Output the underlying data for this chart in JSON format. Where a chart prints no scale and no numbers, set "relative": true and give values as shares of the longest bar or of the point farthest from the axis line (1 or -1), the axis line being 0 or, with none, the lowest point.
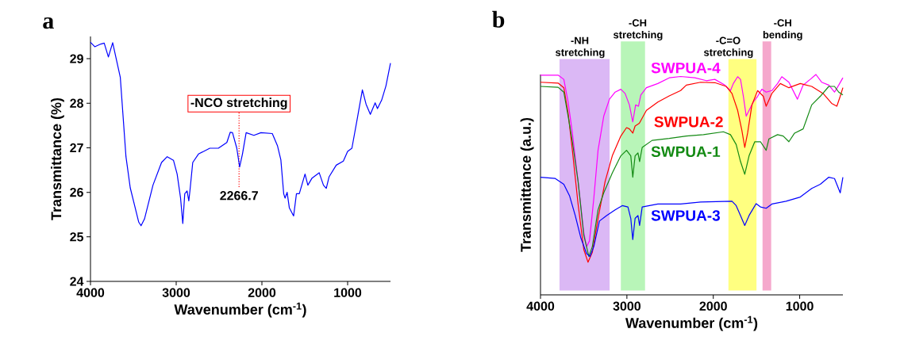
{
  "chart_data": [
    {
      "type": "line",
      "title": "a",
      "xlabel": "Wavenumber (cm$^{-1}$)",
      "ylabel": "Transmittance (%)",
      "xlim": [
        4000,
        500
      ],
      "ylim": [
        24,
        29.5
      ],
      "xticks": [
        4000,
        3000,
        2000,
        1000
      ],
      "yticks": [
        24,
        25,
        26,
        27,
        28,
        29
      ],
      "x": [
        4000,
        3950,
        3880,
        3840,
        3791,
        3741,
        3652,
        3586,
        3536,
        3437,
        3410,
        3370,
        3271,
        3171,
        3105,
        3032,
        2989,
        2949,
        2923,
        2900,
        2873,
        2853,
        2840,
        2807,
        2740,
        2608,
        2508,
        2409,
        2369,
        2343,
        2293,
        2260,
        2227,
        2184,
        2094,
        2011,
        1879,
        1819,
        1779,
        1746,
        1730,
        1706,
        1680,
        1630,
        1597,
        1564,
        1497,
        1464,
        1415,
        1332,
        1282,
        1249,
        1216,
        1133,
        1050,
        1000,
        950,
        884,
        828,
        785,
        735,
        679,
        652,
        603,
        553,
        500
      ],
      "series": [
        {
          "color": "#0000ff",
          "values": [
            29.37,
            29.27,
            29.33,
            29.35,
            29.04,
            29.36,
            28.58,
            26.8,
            26.1,
            25.33,
            25.25,
            25.4,
            26.16,
            26.67,
            26.8,
            26.72,
            26.41,
            25.87,
            25.3,
            25.97,
            26.03,
            25.81,
            26.03,
            26.67,
            26.86,
            26.99,
            26.99,
            27.12,
            27.35,
            27.34,
            26.99,
            26.57,
            26.86,
            27.34,
            27.28,
            27.34,
            27.32,
            27.05,
            26.73,
            25.97,
            25.87,
            26.0,
            25.65,
            25.47,
            25.97,
            25.97,
            26.41,
            26.16,
            26.32,
            26.44,
            26.16,
            26.09,
            26.35,
            26.61,
            26.7,
            26.92,
            26.99,
            27.69,
            28.3,
            27.98,
            27.75,
            28.01,
            27.88,
            28.07,
            28.39,
            28.9
          ]
        }
      ],
      "ref_lines": [
        {
          "axis": "x",
          "value": 2266.7,
          "label": "2266.7",
          "color": "#ff0000",
          "line_style": "dotted"
        }
      ],
      "annotations": [
        "-NCO stretching"
      ]
    },
    {
      "type": "line",
      "title": "b",
      "xlabel": "Wavenumber (cm$^{-1}$)",
      "ylabel": "Transmittance (a.u.)",
      "relative": true,
      "xlim": [
        4000,
        500
      ],
      "xticks": [
        4000,
        3000,
        2000,
        1000
      ],
      "bands": [
        {
          "axis": "x",
          "from": 3780,
          "to": 3200,
          "label": "-NH stretching",
          "color": "#dbb8f5"
        },
        {
          "axis": "x",
          "from": 3070,
          "to": 2790,
          "label": "-CH stretching",
          "color": "#b8f5b8"
        },
        {
          "axis": "x",
          "from": 1825,
          "to": 1500,
          "label": "-C=O stretching",
          "color": "#ffff80"
        },
        {
          "axis": "x",
          "from": 1430,
          "to": 1330,
          "label": "-CH bending",
          "color": "#f5a8cc"
        }
      ],
      "series": [
        {
          "name": "SWPUA-4",
          "color": "#ff00ff",
          "x": [
            4000,
            3796,
            3730,
            3680,
            3631,
            3565,
            3499,
            3466,
            3433,
            3383,
            3334,
            3268,
            3202,
            3136,
            3070,
            3021,
            2971,
            2932,
            2899,
            2866,
            2839,
            2774,
            2642,
            2510,
            2378,
            2213,
            2081,
            1982,
            1867,
            1801,
            1768,
            1718,
            1685,
            1652,
            1619,
            1586,
            1537,
            1487,
            1438,
            1388,
            1322,
            1256,
            1207,
            1125,
            1026,
            960,
            878,
            812,
            746,
            663,
            597,
            548,
            500
          ],
          "values": [
            0.997,
            0.997,
            0.978,
            0.875,
            0.734,
            0.515,
            0.283,
            0.219,
            0.245,
            0.438,
            0.656,
            0.811,
            0.888,
            0.92,
            0.933,
            0.914,
            0.862,
            0.785,
            0.862,
            0.856,
            0.907,
            0.94,
            0.959,
            0.985,
            0.991,
            0.985,
            0.972,
            0.978,
            0.952,
            0.927,
            0.959,
            0.99,
            0.978,
            0.901,
            0.811,
            0.837,
            0.875,
            0.901,
            0.933,
            0.92,
            0.927,
            0.959,
            0.99,
            0.965,
            0.888,
            0.952,
            0.978,
            1.0,
            0.965,
            0.952,
            0.92,
            0.952,
            0.985
          ]
        },
        {
          "name": "SWPUA-2",
          "color": "#ff0000",
          "x": [
            4000,
            3796,
            3730,
            3680,
            3631,
            3565,
            3499,
            3450,
            3400,
            3334,
            3252,
            3169,
            3070,
            3004,
            2971,
            2932,
            2905,
            2856,
            2774,
            2642,
            2510,
            2378,
            2312,
            2147,
            1982,
            1850,
            1784,
            1718,
            1669,
            1636,
            1603,
            1553,
            1487,
            1421,
            1388,
            1322,
            1224,
            1125,
            993,
            861,
            729,
            630,
            570,
            531,
            500
          ],
          "values": [
            0.965,
            0.961,
            0.94,
            0.824,
            0.656,
            0.412,
            0.206,
            0.148,
            0.193,
            0.347,
            0.515,
            0.631,
            0.721,
            0.759,
            0.753,
            0.734,
            0.766,
            0.779,
            0.837,
            0.875,
            0.903,
            0.927,
            0.952,
            0.965,
            0.963,
            0.946,
            0.914,
            0.837,
            0.746,
            0.669,
            0.734,
            0.862,
            0.927,
            0.901,
            0.856,
            0.914,
            0.959,
            0.94,
            0.959,
            0.946,
            0.914,
            0.869,
            0.856,
            0.901,
            0.94
          ]
        },
        {
          "name": "SWPUA-1",
          "color": "#138a13",
          "x": [
            4000,
            3796,
            3730,
            3680,
            3631,
            3565,
            3499,
            3440,
            3400,
            3334,
            3268,
            3169,
            3070,
            3004,
            2955,
            2932,
            2905,
            2872,
            2853,
            2823,
            2708,
            2510,
            2312,
            2114,
            1883,
            1801,
            1735,
            1685,
            1636,
            1586,
            1520,
            1454,
            1388,
            1356,
            1256,
            1191,
            1125,
            1059,
            960,
            861,
            762,
            663,
            597,
            548,
            500
          ],
          "values": [
            0.946,
            0.942,
            0.92,
            0.811,
            0.695,
            0.515,
            0.27,
            0.174,
            0.219,
            0.386,
            0.463,
            0.553,
            0.631,
            0.656,
            0.631,
            0.534,
            0.631,
            0.644,
            0.605,
            0.669,
            0.701,
            0.71,
            0.721,
            0.727,
            0.74,
            0.727,
            0.682,
            0.605,
            0.547,
            0.631,
            0.695,
            0.695,
            0.656,
            0.708,
            0.727,
            0.721,
            0.695,
            0.734,
            0.753,
            0.862,
            0.901,
            0.946,
            0.946,
            0.92,
            0.907
          ]
        },
        {
          "name": "SWPUA-3",
          "color": "#0000ff",
          "x": [
            4000,
            3829,
            3730,
            3664,
            3598,
            3532,
            3466,
            3427,
            3383,
            3318,
            3235,
            3136,
            3054,
            2988,
            2955,
            2932,
            2905,
            2872,
            2853,
            2823,
            2642,
            2378,
            2147,
            1784,
            1735,
            1685,
            1636,
            1586,
            1504,
            1454,
            1388,
            1322,
            1158,
            993,
            861,
            762,
            663,
            597,
            531,
            500
          ],
          "values": [
            0.534,
            0.528,
            0.502,
            0.45,
            0.36,
            0.257,
            0.187,
            0.174,
            0.219,
            0.335,
            0.36,
            0.386,
            0.405,
            0.399,
            0.347,
            0.251,
            0.347,
            0.36,
            0.315,
            0.399,
            0.412,
            0.412,
            0.421,
            0.425,
            0.405,
            0.36,
            0.315,
            0.36,
            0.414,
            0.399,
            0.393,
            0.412,
            0.425,
            0.444,
            0.483,
            0.502,
            0.534,
            0.528,
            0.463,
            0.534
          ]
        }
      ]
    }
  ]
}
